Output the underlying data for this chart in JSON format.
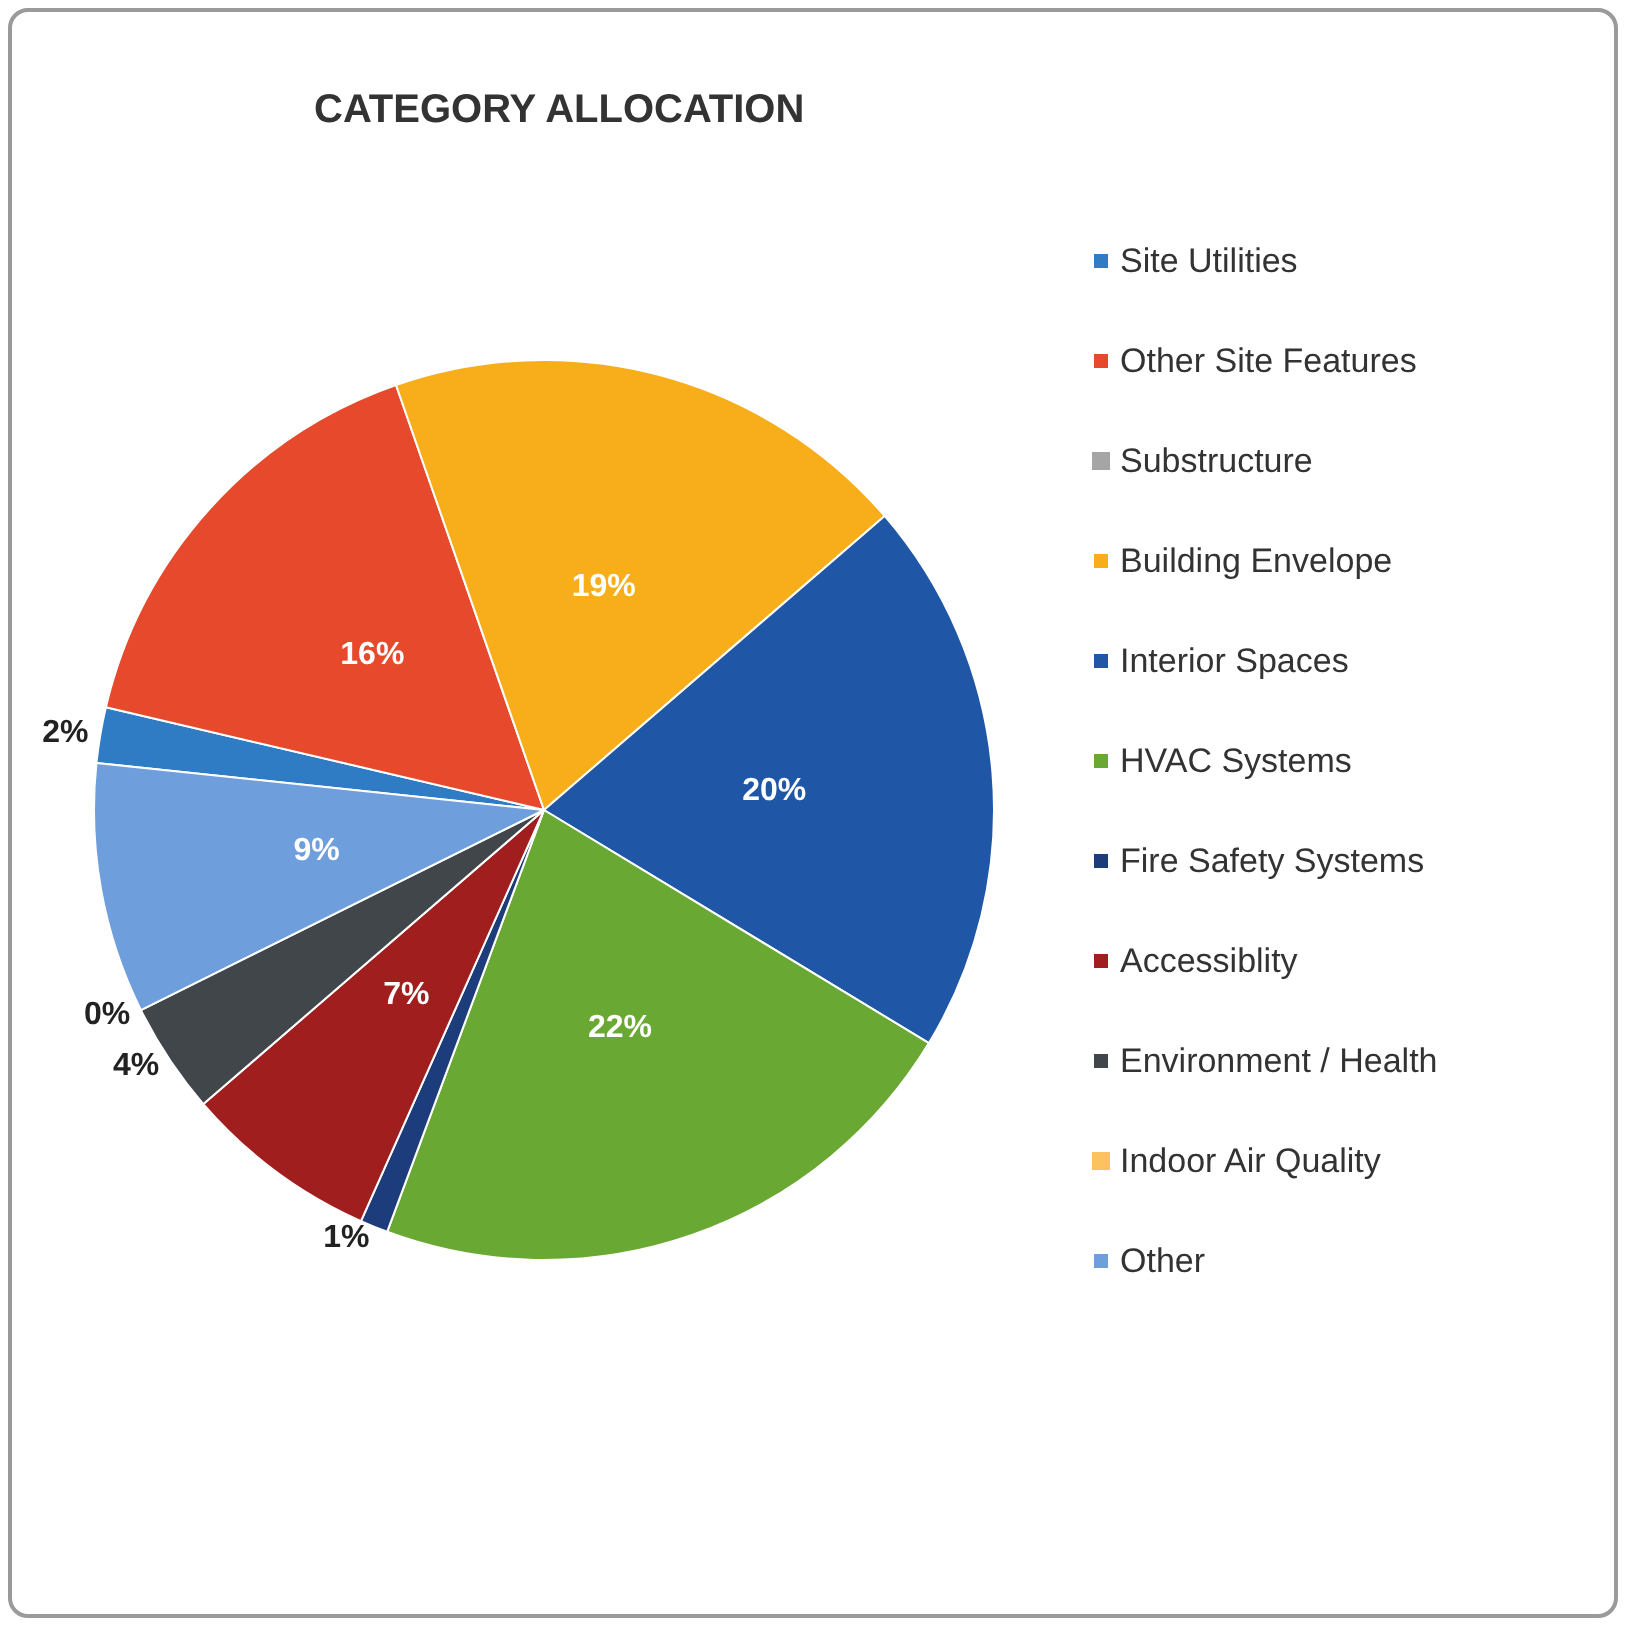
{
  "chart_data": {
    "type": "pie",
    "title": "CATEGORY ALLOCATION",
    "categories": [
      "Site Utilities",
      "Other Site Features",
      "Substructure",
      "Building Envelope",
      "Interior Spaces",
      "HVAC Systems",
      "Fire Safety Systems",
      "Accessiblity",
      "Environment / Health",
      "Indoor Air Quality",
      "Other"
    ],
    "values": [
      2,
      16,
      0,
      19,
      20,
      22,
      1,
      7,
      4,
      0,
      9
    ],
    "value_labels": [
      "2%",
      "16%",
      null,
      "19%",
      "20%",
      "22%",
      "1%",
      "7%",
      "4%",
      "0%",
      "9%"
    ],
    "colors": [
      "#2f7bc4",
      "#e6492b",
      "#a5a5a5",
      "#f8ae1a",
      "#1f56a6",
      "#6aa834",
      "#1c3c7c",
      "#a11e1e",
      "#40464a",
      "#fbc35e",
      "#6e9fdc"
    ],
    "legend": "right"
  }
}
